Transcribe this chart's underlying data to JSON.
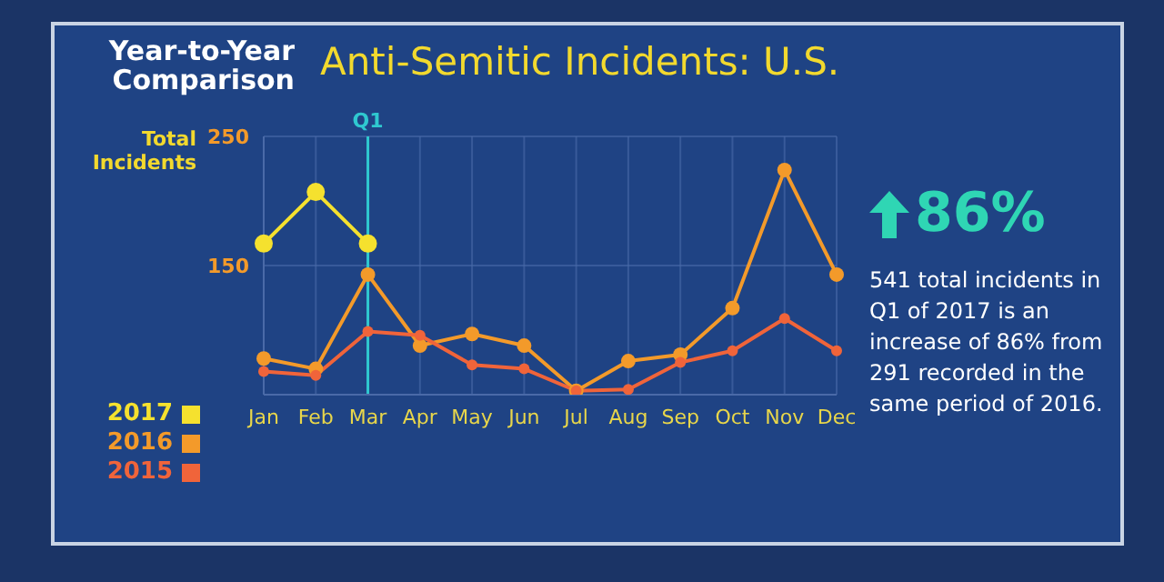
{
  "chart_data": {
    "type": "line",
    "title": "Anti-Semitic Incidents: U.S.",
    "subtitle": "Year-to-Year Comparison",
    "ylabel": "Total Incidents",
    "categories": [
      "Jan",
      "Feb",
      "Mar",
      "Apr",
      "May",
      "Jun",
      "Jul",
      "Aug",
      "Sep",
      "Oct",
      "Nov",
      "Dec"
    ],
    "series": [
      {
        "name": "2017",
        "color": "#f5e12e",
        "values": [
          167,
          207,
          167,
          null,
          null,
          null,
          null,
          null,
          null,
          null,
          null,
          null
        ]
      },
      {
        "name": "2016",
        "color": "#f39a2a",
        "values": [
          78,
          70,
          143,
          88,
          97,
          88,
          53,
          76,
          81,
          117,
          224,
          143
        ]
      },
      {
        "name": "2015",
        "color": "#f0643a",
        "values": [
          68,
          65,
          99,
          96,
          73,
          70,
          53,
          54,
          75,
          84,
          109,
          84
        ]
      }
    ],
    "ylim": [
      50,
      250
    ],
    "yticks": [
      150,
      250
    ],
    "grid": true,
    "legend": "bottom left",
    "marker": "circle",
    "line_style": "solid",
    "ref_lines": [
      {
        "axis": "x",
        "value": "Mar",
        "label": "Q1",
        "color": "#2fc8d0"
      }
    ],
    "annotations": [
      "86%",
      "541 total incidents in Q1 of 2017 is an increase of 86% from 291 recorded in the same period of 2016."
    ]
  }
}
